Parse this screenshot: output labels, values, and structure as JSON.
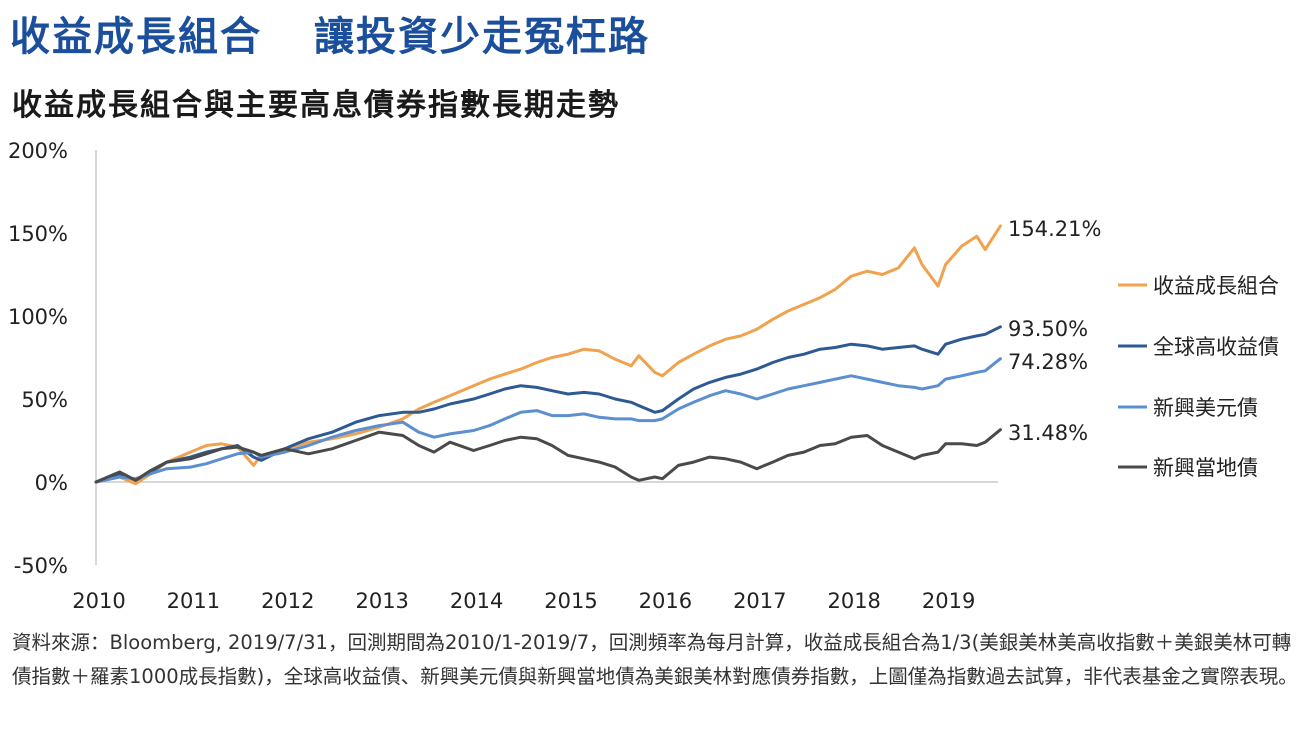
{
  "headline": {
    "part1": "收益成長組合",
    "part2": "讓投資少走冤枉路"
  },
  "subtitle": "收益成長組合與主要高息債券指數長期走勢",
  "chart_data": {
    "type": "line",
    "title": "收益成長組合與主要高息債券指數長期走勢",
    "xlabel": "",
    "ylabel": "",
    "x_ticks": [
      "2010",
      "2011",
      "2012",
      "2013",
      "2014",
      "2015",
      "2016",
      "2017",
      "2018",
      "2019"
    ],
    "y_ticks": [
      "200%",
      "150%",
      "100%",
      "50%",
      "0%",
      "-50%"
    ],
    "ylim": [
      -50,
      200
    ],
    "xlim": [
      2010,
      2019.583
    ],
    "grid": false,
    "legend_position": "right",
    "series": [
      {
        "name": "收益成長組合",
        "color": "#f0a24e",
        "end_label": "154.21%",
        "points": [
          [
            2010,
            0
          ],
          [
            2010.25,
            3
          ],
          [
            2010.42,
            -1
          ],
          [
            2010.58,
            5
          ],
          [
            2010.75,
            12
          ],
          [
            2011,
            18
          ],
          [
            2011.17,
            22
          ],
          [
            2011.33,
            23
          ],
          [
            2011.5,
            21
          ],
          [
            2011.67,
            10
          ],
          [
            2011.75,
            16
          ],
          [
            2012,
            20
          ],
          [
            2012.25,
            24
          ],
          [
            2012.5,
            26
          ],
          [
            2012.75,
            29
          ],
          [
            2013,
            33
          ],
          [
            2013.25,
            38
          ],
          [
            2013.42,
            44
          ],
          [
            2013.58,
            48
          ],
          [
            2013.75,
            52
          ],
          [
            2014,
            58
          ],
          [
            2014.17,
            62
          ],
          [
            2014.33,
            65
          ],
          [
            2014.5,
            68
          ],
          [
            2014.67,
            72
          ],
          [
            2014.83,
            75
          ],
          [
            2015,
            77
          ],
          [
            2015.17,
            80
          ],
          [
            2015.33,
            79
          ],
          [
            2015.5,
            74
          ],
          [
            2015.67,
            70
          ],
          [
            2015.75,
            76
          ],
          [
            2015.92,
            66
          ],
          [
            2016,
            64
          ],
          [
            2016.17,
            72
          ],
          [
            2016.33,
            77
          ],
          [
            2016.5,
            82
          ],
          [
            2016.67,
            86
          ],
          [
            2016.83,
            88
          ],
          [
            2017,
            92
          ],
          [
            2017.17,
            98
          ],
          [
            2017.33,
            103
          ],
          [
            2017.5,
            107
          ],
          [
            2017.67,
            111
          ],
          [
            2017.83,
            116
          ],
          [
            2018,
            124
          ],
          [
            2018.17,
            127
          ],
          [
            2018.33,
            125
          ],
          [
            2018.5,
            129
          ],
          [
            2018.67,
            141
          ],
          [
            2018.75,
            131
          ],
          [
            2018.92,
            118
          ],
          [
            2019,
            131
          ],
          [
            2019.17,
            142
          ],
          [
            2019.33,
            148
          ],
          [
            2019.42,
            140
          ],
          [
            2019.58,
            154.21
          ]
        ]
      },
      {
        "name": "全球高收益債",
        "color": "#2d5a93",
        "end_label": "93.50%",
        "points": [
          [
            2010,
            0
          ],
          [
            2010.25,
            5
          ],
          [
            2010.42,
            1
          ],
          [
            2010.58,
            6
          ],
          [
            2010.75,
            12
          ],
          [
            2011,
            15
          ],
          [
            2011.17,
            18
          ],
          [
            2011.33,
            20
          ],
          [
            2011.5,
            22
          ],
          [
            2011.67,
            15
          ],
          [
            2011.75,
            13
          ],
          [
            2012,
            20
          ],
          [
            2012.25,
            26
          ],
          [
            2012.5,
            30
          ],
          [
            2012.75,
            36
          ],
          [
            2013,
            40
          ],
          [
            2013.25,
            42
          ],
          [
            2013.42,
            42
          ],
          [
            2013.58,
            44
          ],
          [
            2013.75,
            47
          ],
          [
            2014,
            50
          ],
          [
            2014.17,
            53
          ],
          [
            2014.33,
            56
          ],
          [
            2014.5,
            58
          ],
          [
            2014.67,
            57
          ],
          [
            2014.83,
            55
          ],
          [
            2015,
            53
          ],
          [
            2015.17,
            54
          ],
          [
            2015.33,
            53
          ],
          [
            2015.5,
            50
          ],
          [
            2015.67,
            48
          ],
          [
            2015.75,
            46
          ],
          [
            2015.92,
            42
          ],
          [
            2016,
            43
          ],
          [
            2016.17,
            50
          ],
          [
            2016.33,
            56
          ],
          [
            2016.5,
            60
          ],
          [
            2016.67,
            63
          ],
          [
            2016.83,
            65
          ],
          [
            2017,
            68
          ],
          [
            2017.17,
            72
          ],
          [
            2017.33,
            75
          ],
          [
            2017.5,
            77
          ],
          [
            2017.67,
            80
          ],
          [
            2017.83,
            81
          ],
          [
            2018,
            83
          ],
          [
            2018.17,
            82
          ],
          [
            2018.33,
            80
          ],
          [
            2018.5,
            81
          ],
          [
            2018.67,
            82
          ],
          [
            2018.75,
            80
          ],
          [
            2018.92,
            77
          ],
          [
            2019,
            83
          ],
          [
            2019.17,
            86
          ],
          [
            2019.33,
            88
          ],
          [
            2019.42,
            89
          ],
          [
            2019.58,
            93.5
          ]
        ]
      },
      {
        "name": "新興美元債",
        "color": "#5b8fd0",
        "end_label": "74.28%",
        "points": [
          [
            2010,
            0
          ],
          [
            2010.25,
            3
          ],
          [
            2010.42,
            2
          ],
          [
            2010.58,
            5
          ],
          [
            2010.75,
            8
          ],
          [
            2011,
            9
          ],
          [
            2011.17,
            11
          ],
          [
            2011.33,
            14
          ],
          [
            2011.5,
            17
          ],
          [
            2011.67,
            18
          ],
          [
            2011.75,
            15
          ],
          [
            2012,
            18
          ],
          [
            2012.25,
            22
          ],
          [
            2012.5,
            27
          ],
          [
            2012.75,
            31
          ],
          [
            2013,
            34
          ],
          [
            2013.25,
            36
          ],
          [
            2013.42,
            30
          ],
          [
            2013.58,
            27
          ],
          [
            2013.75,
            29
          ],
          [
            2014,
            31
          ],
          [
            2014.17,
            34
          ],
          [
            2014.33,
            38
          ],
          [
            2014.5,
            42
          ],
          [
            2014.67,
            43
          ],
          [
            2014.83,
            40
          ],
          [
            2015,
            40
          ],
          [
            2015.17,
            41
          ],
          [
            2015.33,
            39
          ],
          [
            2015.5,
            38
          ],
          [
            2015.67,
            38
          ],
          [
            2015.75,
            37
          ],
          [
            2015.92,
            37
          ],
          [
            2016,
            38
          ],
          [
            2016.17,
            44
          ],
          [
            2016.33,
            48
          ],
          [
            2016.5,
            52
          ],
          [
            2016.67,
            55
          ],
          [
            2016.83,
            53
          ],
          [
            2017,
            50
          ],
          [
            2017.17,
            53
          ],
          [
            2017.33,
            56
          ],
          [
            2017.5,
            58
          ],
          [
            2017.67,
            60
          ],
          [
            2017.83,
            62
          ],
          [
            2018,
            64
          ],
          [
            2018.17,
            62
          ],
          [
            2018.33,
            60
          ],
          [
            2018.5,
            58
          ],
          [
            2018.67,
            57
          ],
          [
            2018.75,
            56
          ],
          [
            2018.92,
            58
          ],
          [
            2019,
            62
          ],
          [
            2019.17,
            64
          ],
          [
            2019.33,
            66
          ],
          [
            2019.42,
            67
          ],
          [
            2019.58,
            74.28
          ]
        ]
      },
      {
        "name": "新興當地債",
        "color": "#4a4a4a",
        "end_label": "31.48%",
        "points": [
          [
            2010,
            0
          ],
          [
            2010.25,
            6
          ],
          [
            2010.42,
            1
          ],
          [
            2010.58,
            7
          ],
          [
            2010.75,
            12
          ],
          [
            2011,
            14
          ],
          [
            2011.17,
            17
          ],
          [
            2011.33,
            20
          ],
          [
            2011.5,
            21
          ],
          [
            2011.67,
            18
          ],
          [
            2011.75,
            16
          ],
          [
            2012,
            20
          ],
          [
            2012.25,
            17
          ],
          [
            2012.5,
            20
          ],
          [
            2012.75,
            25
          ],
          [
            2013,
            30
          ],
          [
            2013.25,
            28
          ],
          [
            2013.42,
            22
          ],
          [
            2013.58,
            18
          ],
          [
            2013.75,
            24
          ],
          [
            2014,
            19
          ],
          [
            2014.17,
            22
          ],
          [
            2014.33,
            25
          ],
          [
            2014.5,
            27
          ],
          [
            2014.67,
            26
          ],
          [
            2014.83,
            22
          ],
          [
            2015,
            16
          ],
          [
            2015.17,
            14
          ],
          [
            2015.33,
            12
          ],
          [
            2015.5,
            9
          ],
          [
            2015.67,
            3
          ],
          [
            2015.75,
            1
          ],
          [
            2015.92,
            3
          ],
          [
            2016,
            2
          ],
          [
            2016.17,
            10
          ],
          [
            2016.33,
            12
          ],
          [
            2016.5,
            15
          ],
          [
            2016.67,
            14
          ],
          [
            2016.83,
            12
          ],
          [
            2017,
            8
          ],
          [
            2017.17,
            12
          ],
          [
            2017.33,
            16
          ],
          [
            2017.5,
            18
          ],
          [
            2017.67,
            22
          ],
          [
            2017.83,
            23
          ],
          [
            2018,
            27
          ],
          [
            2018.17,
            28
          ],
          [
            2018.33,
            22
          ],
          [
            2018.5,
            18
          ],
          [
            2018.67,
            14
          ],
          [
            2018.75,
            16
          ],
          [
            2018.92,
            18
          ],
          [
            2019,
            23
          ],
          [
            2019.17,
            23
          ],
          [
            2019.33,
            22
          ],
          [
            2019.42,
            24
          ],
          [
            2019.58,
            31.48
          ]
        ]
      }
    ]
  },
  "source_note": "資料來源：Bloomberg, 2019/7/31，回測期間為2010/1-2019/7，回測頻率為每月計算，收益成長組合為1/3(美銀美林美高收指數＋美銀美林可轉債指數＋羅素1000成長指數)，全球高收益債、新興美元債與新興當地債為美銀美林對應債券指數，上圖僅為指數過去試算，非代表基金之實際表現。"
}
